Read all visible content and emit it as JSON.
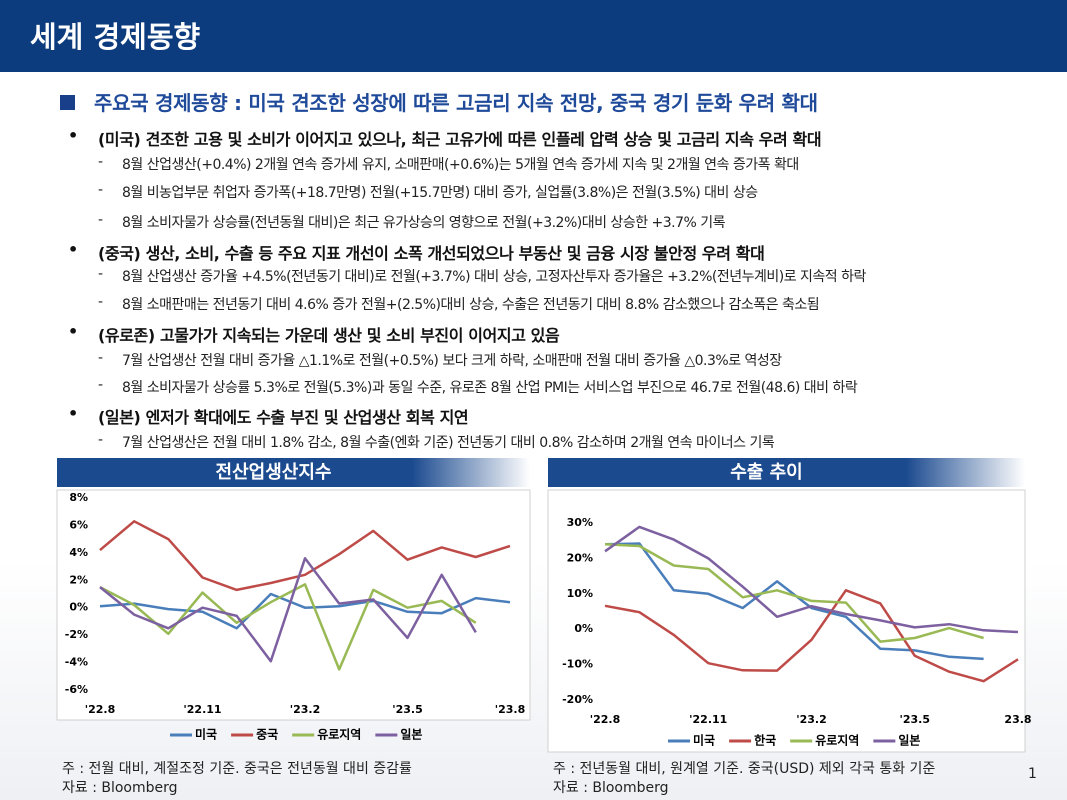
{
  "header": {
    "title": "세계 경제동향"
  },
  "section": {
    "title": "주요국 경제동향 : 미국 견조한 성장에 따른 고금리 지속 전망, 중국 경기 둔화 우려 확대"
  },
  "bullets": [
    {
      "text": "(미국) 견조한 고용 및 소비가 이어지고 있으나, 최근 고유가에 따른 인플레 압력 상승 및 고금리 지속 우려 확대",
      "items": [
        "8월 산업생산(+0.4%) 2개월 연속 증가세 유지, 소매판매(+0.6%)는 5개월 연속 증가세 지속 및 2개월 연속 증가폭 확대",
        "8월 비농업부문 취업자 증가폭(+18.7만명) 전월(+15.7만명) 대비 증가, 실업률(3.8%)은 전월(3.5%) 대비 상승",
        "8월 소비자물가 상승률(전년동월 대비)은 최근 유가상승의 영향으로 전월(+3.2%)대비 상승한 +3.7% 기록"
      ]
    },
    {
      "text": "(중국) 생산, 소비, 수출 등 주요 지표 개선이 소폭 개선되었으나 부동산 및 금융 시장 불안정 우려 확대",
      "items": [
        "8월 산업생산 증가율 +4.5%(전년동기 대비)로 전월(+3.7%) 대비 상승, 고정자산투자 증가율은 +3.2%(전년누계비)로 지속적 하락",
        "8월 소매판매는 전년동기 대비 4.6% 증가 전월+(2.5%)대비 상승, 수출은 전년동기 대비 8.8% 감소했으나 감소폭은 축소됨"
      ]
    },
    {
      "text": "(유로존) 고물가가 지속되는 가운데 생산 및 소비 부진이 이어지고 있음",
      "items": [
        "7월 산업생산 전월 대비 증가율 △1.1%로 전월(+0.5%) 보다 크게 하락, 소매판매 전월 대비 증가율 △0.3%로 역성장",
        "8월 소비자물가 상승률 5.3%로 전월(5.3%)과 동일 수준, 유로존 8월 산업 PMI는 서비스업 부진으로 46.7로 전월(48.6) 대비 하락"
      ]
    },
    {
      "text": "(일본) 엔저가 확대에도 수출 부진 및 산업생산 회복 지연",
      "items": [
        "7월 산업생산은 전월 대비 1.8% 감소, 8월 수출(엔화 기준) 전년동기 대비 0.8% 감소하며 2개월 연속 마이너스 기록"
      ]
    }
  ],
  "chart_data": [
    {
      "type": "line",
      "title": "전산업생산지수",
      "categories": [
        "'22.8",
        null,
        null,
        "'22.11",
        null,
        null,
        "'23.2",
        null,
        null,
        "'23.5",
        null,
        null,
        "'23.8"
      ],
      "ylim": [
        -6,
        8
      ],
      "yticks": [
        {
          "value": -6,
          "label": "-6%"
        },
        {
          "value": -4,
          "label": "-4%"
        },
        {
          "value": -2,
          "label": "-2%"
        },
        {
          "value": 0,
          "label": "0%"
        },
        {
          "value": 2,
          "label": "2%"
        },
        {
          "value": 4,
          "label": "4%"
        },
        {
          "value": 6,
          "label": "6%"
        },
        {
          "value": 8,
          "label": "8%"
        }
      ],
      "series": [
        {
          "name": "미국",
          "color": "#4a7ebb",
          "values": [
            0.1,
            0.3,
            -0.1,
            -0.3,
            -1.5,
            1.0,
            0.0,
            0.1,
            0.5,
            -0.3,
            -0.4,
            0.7,
            0.4
          ]
        },
        {
          "name": "중국",
          "color": "#be4b48",
          "values": [
            4.2,
            6.3,
            5.0,
            2.2,
            1.3,
            1.8,
            2.4,
            3.9,
            5.6,
            3.5,
            4.4,
            3.7,
            4.5
          ]
        },
        {
          "name": "유로지역",
          "color": "#98b954",
          "values": [
            1.5,
            0.2,
            -1.9,
            1.1,
            -1.1,
            0.4,
            1.7,
            -4.5,
            1.3,
            0.0,
            0.5,
            -1.1,
            null
          ]
        },
        {
          "name": "일본",
          "color": "#7d60a0",
          "values": [
            1.5,
            -0.5,
            -1.5,
            0.0,
            -0.6,
            -3.9,
            3.6,
            0.3,
            0.6,
            -2.2,
            2.4,
            -1.8,
            null
          ]
        }
      ],
      "note": "주 : 전월 대비, 계절조정 기준. 중국은 전년동월 대비 증감률",
      "source": "자료 : Bloomberg"
    },
    {
      "type": "line",
      "title": "수출 추이",
      "categories": [
        "'22.8",
        null,
        null,
        "'22.11",
        null,
        null,
        "'23.2",
        null,
        null,
        "'23.5",
        null,
        null,
        "23.8"
      ],
      "ylim": [
        -20,
        30
      ],
      "yticks": [
        {
          "value": -20,
          "label": "-20%"
        },
        {
          "value": -10,
          "label": "-10%"
        },
        {
          "value": 0,
          "label": "0%"
        },
        {
          "value": 10,
          "label": "10%"
        },
        {
          "value": 20,
          "label": "20%"
        },
        {
          "value": 30,
          "label": "30%"
        }
      ],
      "series": [
        {
          "name": "미국",
          "color": "#4a7ebb",
          "values": [
            24,
            24.2,
            11,
            10,
            6,
            13.5,
            6,
            3.5,
            -5.5,
            -6,
            -7.8,
            -8.4,
            null
          ]
        },
        {
          "name": "한국",
          "color": "#be4b48",
          "values": [
            6.6,
            4.8,
            -1.6,
            -9.6,
            -11.6,
            -11.7,
            -3.0,
            11.0,
            7.3,
            -7.5,
            -12.0,
            -14.7,
            -8.5
          ]
        },
        {
          "name": "유로지역",
          "color": "#98b954",
          "values": [
            24,
            23.5,
            18,
            17,
            9,
            11,
            8,
            7.5,
            -3.5,
            -2.5,
            0.3,
            -2.5,
            null
          ]
        },
        {
          "name": "일본",
          "color": "#7d60a0",
          "values": [
            22,
            28.9,
            25.3,
            20,
            12,
            3.5,
            6.5,
            4.3,
            2.5,
            0.5,
            1.4,
            -0.3,
            -0.8
          ]
        }
      ],
      "note": "주 : 전년동월 대비, 원계열 기준. 중국(USD) 제외 각국 통화 기준",
      "source": "자료 : Bloomberg"
    }
  ],
  "page_number": 1
}
